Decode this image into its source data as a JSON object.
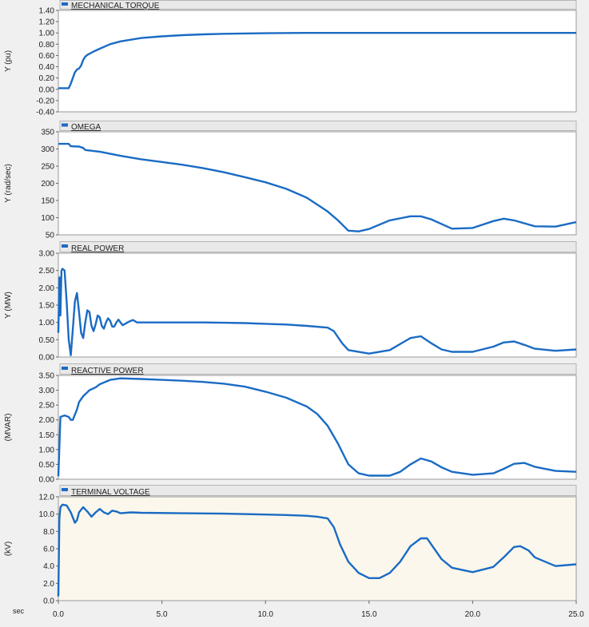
{
  "chart_data": [
    {
      "type": "line",
      "title": "MECHANICAL TORQUE",
      "ylabel": "Y (pu)",
      "ylim": [
        -0.4,
        1.4
      ],
      "yticks": [
        "1.40",
        "1.20",
        "1.00",
        "0.80",
        "0.60",
        "0.40",
        "0.20",
        "0.00",
        "-0.20",
        "-0.40"
      ],
      "color": "#1a6bc4",
      "plot_background": "#ffffff",
      "series": [
        {
          "x": [
            0,
            0.5,
            0.6,
            0.7,
            0.8,
            0.9,
            1.0,
            1.1,
            1.2,
            1.3,
            1.4,
            1.5,
            1.7,
            2,
            2.5,
            3,
            4,
            5,
            6,
            7,
            8,
            9,
            10,
            12,
            15,
            20,
            25
          ],
          "y": [
            0.02,
            0.02,
            0.1,
            0.2,
            0.3,
            0.35,
            0.37,
            0.42,
            0.52,
            0.58,
            0.61,
            0.63,
            0.67,
            0.72,
            0.8,
            0.85,
            0.91,
            0.94,
            0.96,
            0.975,
            0.985,
            0.99,
            0.995,
            1.0,
            1.0,
            1.0,
            1.0
          ]
        }
      ]
    },
    {
      "type": "line",
      "title": "OMEGA",
      "ylabel": "Y (rad/sec)",
      "ylim": [
        50,
        350
      ],
      "yticks": [
        "350",
        "300",
        "250",
        "200",
        "150",
        "100",
        "50"
      ],
      "color": "#1a6bc4",
      "plot_background": "#ffffff",
      "series": [
        {
          "x": [
            0,
            0.5,
            0.6,
            1,
            1.2,
            1.3,
            2,
            3,
            4,
            5,
            6,
            7,
            8,
            9,
            10,
            11,
            12,
            13,
            13.5,
            14,
            14.5,
            15,
            16,
            17,
            17.5,
            18,
            19,
            20,
            21,
            21.5,
            22,
            23,
            24,
            25
          ],
          "y": [
            315,
            315,
            308,
            307,
            303,
            297,
            292,
            280,
            270,
            262,
            254,
            244,
            232,
            218,
            203,
            184,
            158,
            118,
            92,
            62,
            60,
            67,
            92,
            104,
            104,
            95,
            68,
            70,
            90,
            97,
            92,
            75,
            74,
            87
          ]
        }
      ]
    },
    {
      "type": "line",
      "title": "REAL POWER",
      "ylabel": "Y (MW)",
      "ylim": [
        0,
        3
      ],
      "yticks": [
        "3.00",
        "2.50",
        "2.00",
        "1.50",
        "1.00",
        "0.50",
        "0.00"
      ],
      "color": "#1a6bc4",
      "plot_background": "#ffffff",
      "series": [
        {
          "x": [
            0,
            0.05,
            0.1,
            0.15,
            0.2,
            0.3,
            0.4,
            0.5,
            0.6,
            0.7,
            0.8,
            0.9,
            1.0,
            1.1,
            1.2,
            1.3,
            1.4,
            1.5,
            1.6,
            1.7,
            1.8,
            1.9,
            2.0,
            2.1,
            2.2,
            2.3,
            2.4,
            2.5,
            2.6,
            2.7,
            2.8,
            2.9,
            3.0,
            3.1,
            3.2,
            3.4,
            3.6,
            3.8,
            4,
            5,
            6,
            7,
            8,
            9,
            10,
            11,
            12,
            13,
            13.3,
            13.7,
            14,
            15,
            16,
            17,
            17.5,
            18,
            18.5,
            19,
            20,
            21,
            21.5,
            22,
            22.5,
            23,
            24,
            25
          ],
          "y": [
            0.7,
            2.3,
            1.2,
            2.5,
            2.55,
            2.5,
            1.6,
            0.5,
            0.05,
            0.8,
            1.6,
            1.85,
            1.3,
            0.7,
            0.55,
            1.0,
            1.35,
            1.3,
            0.9,
            0.75,
            0.95,
            1.2,
            1.15,
            0.9,
            0.82,
            1.0,
            1.12,
            1.05,
            0.88,
            0.88,
            1.0,
            1.08,
            1.0,
            0.92,
            0.95,
            1.02,
            1.07,
            1.0,
            1.0,
            1.0,
            1.0,
            1.0,
            0.99,
            0.98,
            0.96,
            0.94,
            0.9,
            0.85,
            0.75,
            0.4,
            0.2,
            0.1,
            0.2,
            0.55,
            0.6,
            0.4,
            0.22,
            0.15,
            0.15,
            0.3,
            0.42,
            0.45,
            0.35,
            0.24,
            0.18,
            0.22
          ]
        }
      ]
    },
    {
      "type": "line",
      "title": "REACTIVE POWER",
      "ylabel": "(MVAR)",
      "ylim": [
        0,
        3.5
      ],
      "yticks": [
        "3.50",
        "3.00",
        "2.50",
        "2.00",
        "1.50",
        "1.00",
        "0.50",
        "0.00"
      ],
      "color": "#1a6bc4",
      "plot_background": "#ffffff",
      "series": [
        {
          "x": [
            0,
            0.1,
            0.3,
            0.5,
            0.6,
            0.7,
            0.9,
            1.0,
            1.2,
            1.5,
            1.8,
            2,
            2.5,
            3,
            4,
            5,
            6,
            7,
            8,
            9,
            10,
            11,
            12,
            12.5,
            13,
            13.5,
            14,
            14.5,
            15,
            16,
            16.5,
            17,
            17.5,
            18,
            18.5,
            19,
            20,
            21,
            21.5,
            22,
            22.5,
            23,
            24,
            25
          ],
          "y": [
            0.1,
            2.1,
            2.15,
            2.1,
            2.0,
            2.0,
            2.35,
            2.6,
            2.8,
            3.0,
            3.1,
            3.2,
            3.35,
            3.4,
            3.38,
            3.35,
            3.32,
            3.28,
            3.22,
            3.12,
            2.95,
            2.75,
            2.45,
            2.2,
            1.8,
            1.2,
            0.5,
            0.2,
            0.12,
            0.12,
            0.25,
            0.5,
            0.7,
            0.6,
            0.4,
            0.25,
            0.15,
            0.2,
            0.35,
            0.52,
            0.55,
            0.42,
            0.28,
            0.25
          ]
        }
      ]
    },
    {
      "type": "line",
      "title": "TERMINAL VOLTAGE",
      "ylabel": "(kV)",
      "ylim": [
        0,
        12
      ],
      "yticks": [
        "12.0",
        "10.0",
        "8.0",
        "6.0",
        "4.0",
        "2.0",
        "0.0"
      ],
      "xlabel": "sec",
      "xlim": [
        0,
        25
      ],
      "xticks": [
        "0.0",
        "5.0",
        "10.0",
        "15.0",
        "20.0",
        "25.0"
      ],
      "color": "#1a6bc4",
      "plot_background": "#fbf7ec",
      "series": [
        {
          "x": [
            0,
            0.05,
            0.1,
            0.2,
            0.4,
            0.6,
            0.8,
            0.9,
            1.0,
            1.2,
            1.4,
            1.6,
            1.8,
            2.0,
            2.2,
            2.4,
            2.6,
            2.8,
            3.0,
            3.5,
            4,
            6,
            8,
            10,
            11,
            12,
            12.5,
            13,
            13.3,
            13.6,
            14,
            14.5,
            15,
            15.5,
            16,
            16.5,
            17,
            17.5,
            17.8,
            18,
            18.5,
            19,
            20,
            21,
            21.5,
            22,
            22.3,
            22.7,
            23,
            24,
            25
          ],
          "y": [
            0.5,
            9.5,
            10.8,
            11.1,
            11.0,
            10.2,
            9.0,
            9.3,
            10.2,
            10.8,
            10.3,
            9.7,
            10.2,
            10.6,
            10.2,
            10.0,
            10.4,
            10.3,
            10.1,
            10.2,
            10.15,
            10.1,
            10.05,
            9.95,
            9.9,
            9.8,
            9.7,
            9.5,
            8.5,
            6.5,
            4.5,
            3.2,
            2.6,
            2.6,
            3.2,
            4.5,
            6.3,
            7.2,
            7.2,
            6.5,
            4.8,
            3.8,
            3.3,
            3.9,
            5.0,
            6.2,
            6.3,
            5.8,
            5.0,
            4.0,
            4.2
          ]
        }
      ]
    }
  ]
}
